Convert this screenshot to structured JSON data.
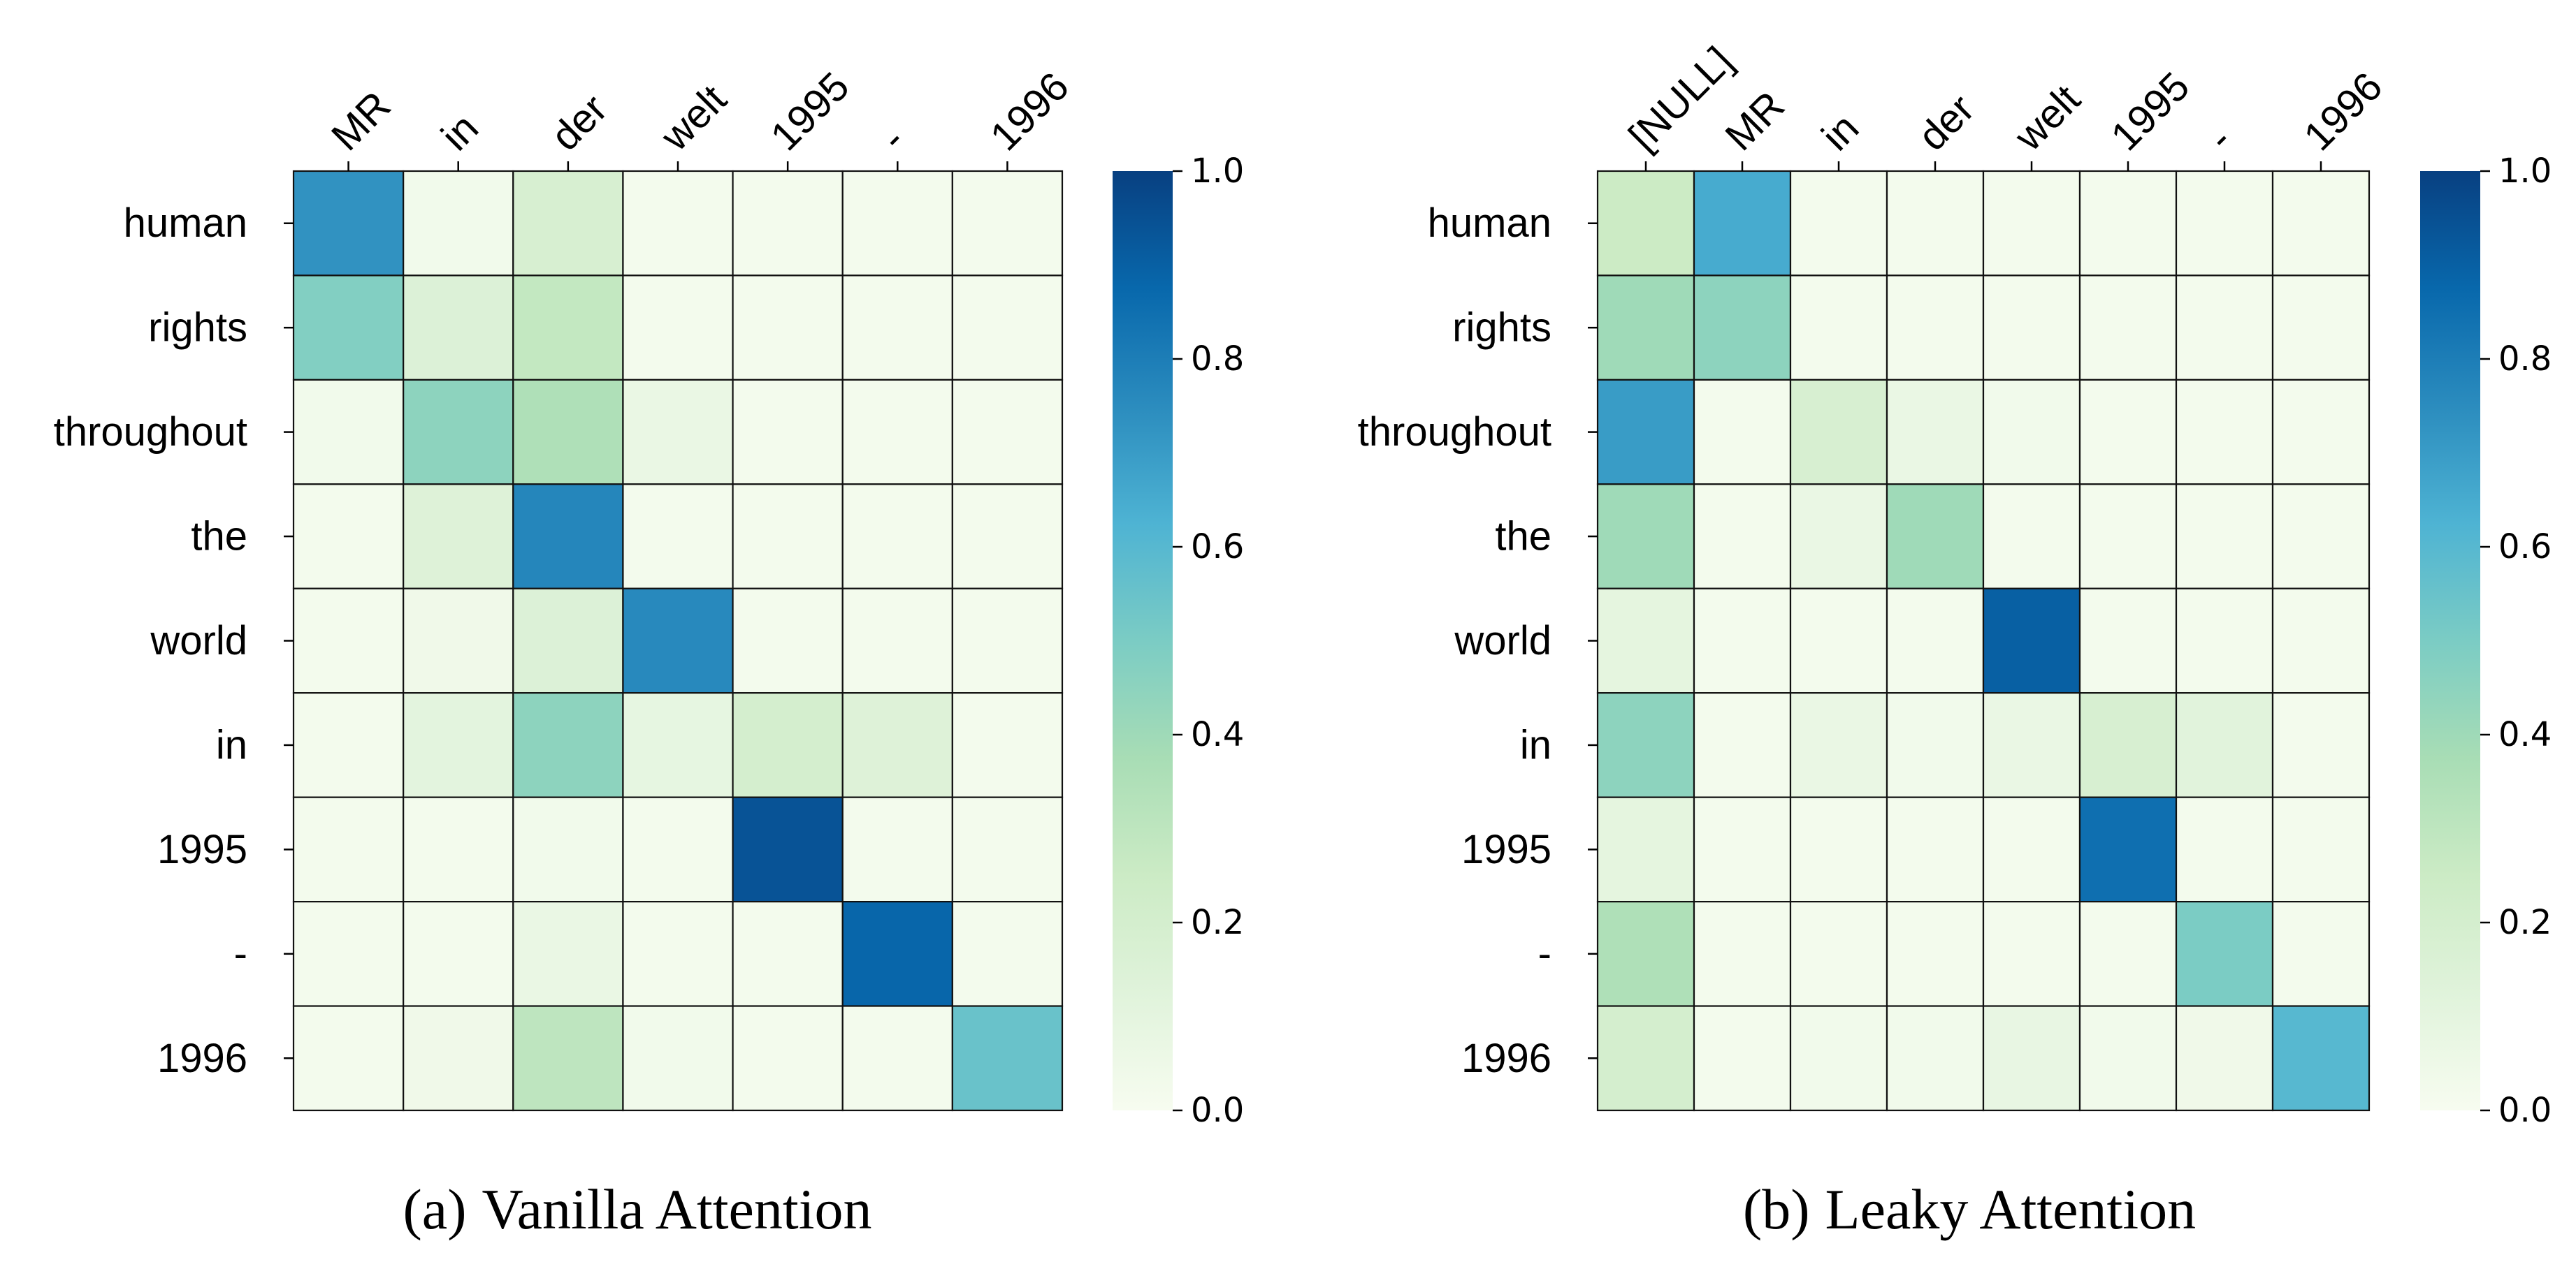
{
  "chart_data": [
    {
      "type": "heatmap",
      "caption_tag": "(a)",
      "caption_text": "Vanilla Attention",
      "x_labels": [
        "MR",
        "in",
        "der",
        "welt",
        "1995",
        "-",
        "1996"
      ],
      "y_labels": [
        "human",
        "rights",
        "throughout",
        "the",
        "world",
        "in",
        "1995",
        "-",
        "1996"
      ],
      "values": [
        [
          0.73,
          0.03,
          0.18,
          0.02,
          0.02,
          0.02,
          0.02
        ],
        [
          0.48,
          0.15,
          0.28,
          0.02,
          0.02,
          0.02,
          0.02
        ],
        [
          0.03,
          0.45,
          0.35,
          0.07,
          0.02,
          0.02,
          0.02
        ],
        [
          0.02,
          0.14,
          0.77,
          0.02,
          0.02,
          0.02,
          0.02
        ],
        [
          0.02,
          0.04,
          0.15,
          0.76,
          0.02,
          0.02,
          0.02
        ],
        [
          0.02,
          0.11,
          0.45,
          0.09,
          0.2,
          0.14,
          0.02
        ],
        [
          0.02,
          0.02,
          0.03,
          0.02,
          0.94,
          0.02,
          0.02
        ],
        [
          0.02,
          0.02,
          0.07,
          0.02,
          0.02,
          0.88,
          0.02
        ],
        [
          0.02,
          0.04,
          0.3,
          0.03,
          0.02,
          0.02,
          0.55
        ]
      ],
      "colormap": "GnBu",
      "vmin": 0.0,
      "vmax": 1.0,
      "colorbar_ticks": [
        "0.0",
        "0.2",
        "0.4",
        "0.6",
        "0.8",
        "1.0"
      ]
    },
    {
      "type": "heatmap",
      "caption_tag": "(b)",
      "caption_text": "Leaky Attention",
      "x_labels": [
        "[NULL]",
        "MR",
        "in",
        "der",
        "welt",
        "1995",
        "-",
        "1996"
      ],
      "y_labels": [
        "human",
        "rights",
        "throughout",
        "the",
        "world",
        "in",
        "1995",
        "-",
        "1996"
      ],
      "values": [
        [
          0.25,
          0.65,
          0.02,
          0.02,
          0.02,
          0.02,
          0.02,
          0.02
        ],
        [
          0.4,
          0.45,
          0.02,
          0.02,
          0.02,
          0.02,
          0.02,
          0.02
        ],
        [
          0.7,
          0.02,
          0.18,
          0.07,
          0.03,
          0.02,
          0.02,
          0.02
        ],
        [
          0.4,
          0.02,
          0.07,
          0.4,
          0.02,
          0.02,
          0.02,
          0.02
        ],
        [
          0.1,
          0.02,
          0.02,
          0.02,
          0.9,
          0.02,
          0.02,
          0.02
        ],
        [
          0.45,
          0.02,
          0.07,
          0.03,
          0.07,
          0.18,
          0.12,
          0.02
        ],
        [
          0.1,
          0.02,
          0.02,
          0.02,
          0.02,
          0.85,
          0.02,
          0.02
        ],
        [
          0.35,
          0.02,
          0.02,
          0.02,
          0.02,
          0.02,
          0.5,
          0.02
        ],
        [
          0.2,
          0.02,
          0.03,
          0.03,
          0.08,
          0.03,
          0.04,
          0.6
        ]
      ],
      "colormap": "GnBu",
      "vmin": 0.0,
      "vmax": 1.0,
      "colorbar_ticks": [
        "0.0",
        "0.2",
        "0.4",
        "0.6",
        "0.8",
        "1.0"
      ]
    }
  ]
}
